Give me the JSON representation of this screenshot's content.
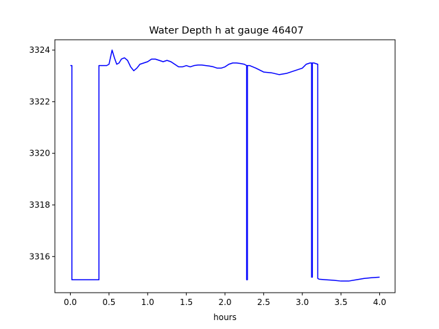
{
  "chart_data": {
    "type": "line",
    "title": "Water Depth h at gauge 46407",
    "xlabel": "hours",
    "ylabel": "",
    "xlim": [
      -0.2,
      4.2
    ],
    "ylim": [
      3314.6,
      3324.4
    ],
    "xticks": [
      0.0,
      0.5,
      1.0,
      1.5,
      2.0,
      2.5,
      3.0,
      3.5,
      4.0
    ],
    "xtick_labels": [
      "0.0",
      "0.5",
      "1.0",
      "1.5",
      "2.0",
      "2.5",
      "3.0",
      "3.5",
      "4.0"
    ],
    "yticks": [
      3316,
      3318,
      3320,
      3322,
      3324
    ],
    "ytick_labels": [
      "3316",
      "3318",
      "3320",
      "3322",
      "3324"
    ],
    "grid": false,
    "series": [
      {
        "color": "#0000ff",
        "x": [
          0.0,
          0.02,
          0.02,
          0.1,
          0.2,
          0.3,
          0.37,
          0.37,
          0.42,
          0.47,
          0.5,
          0.54,
          0.57,
          0.6,
          0.63,
          0.66,
          0.7,
          0.74,
          0.78,
          0.82,
          0.86,
          0.9,
          0.95,
          1.0,
          1.05,
          1.1,
          1.15,
          1.2,
          1.25,
          1.3,
          1.35,
          1.4,
          1.45,
          1.5,
          1.55,
          1.6,
          1.65,
          1.7,
          1.75,
          1.8,
          1.85,
          1.9,
          1.95,
          2.0,
          2.05,
          2.1,
          2.15,
          2.2,
          2.25,
          2.28,
          2.28,
          2.29,
          2.29,
          2.32,
          2.4,
          2.5,
          2.6,
          2.7,
          2.8,
          2.9,
          3.0,
          3.05,
          3.1,
          3.12,
          3.12,
          3.13,
          3.13,
          3.15,
          3.2,
          3.2,
          3.22,
          3.22,
          3.3,
          3.4,
          3.5,
          3.6,
          3.7,
          3.8,
          3.9,
          4.0
        ],
        "y": [
          3323.4,
          3323.4,
          3315.1,
          3315.1,
          3315.1,
          3315.1,
          3315.1,
          3323.4,
          3323.4,
          3323.4,
          3323.45,
          3324.0,
          3323.7,
          3323.45,
          3323.5,
          3323.65,
          3323.7,
          3323.6,
          3323.35,
          3323.2,
          3323.3,
          3323.45,
          3323.5,
          3323.55,
          3323.65,
          3323.65,
          3323.6,
          3323.55,
          3323.6,
          3323.55,
          3323.45,
          3323.35,
          3323.35,
          3323.4,
          3323.35,
          3323.4,
          3323.42,
          3323.42,
          3323.4,
          3323.38,
          3323.35,
          3323.3,
          3323.3,
          3323.35,
          3323.45,
          3323.5,
          3323.5,
          3323.48,
          3323.45,
          3323.4,
          3315.1,
          3315.1,
          3323.4,
          3323.4,
          3323.3,
          3323.15,
          3323.12,
          3323.05,
          3323.1,
          3323.2,
          3323.3,
          3323.45,
          3323.5,
          3323.5,
          3315.2,
          3315.2,
          3323.5,
          3323.5,
          3323.45,
          3315.15,
          3315.12,
          3315.12,
          3315.1,
          3315.08,
          3315.05,
          3315.05,
          3315.1,
          3315.15,
          3315.18,
          3315.2
        ]
      }
    ]
  }
}
